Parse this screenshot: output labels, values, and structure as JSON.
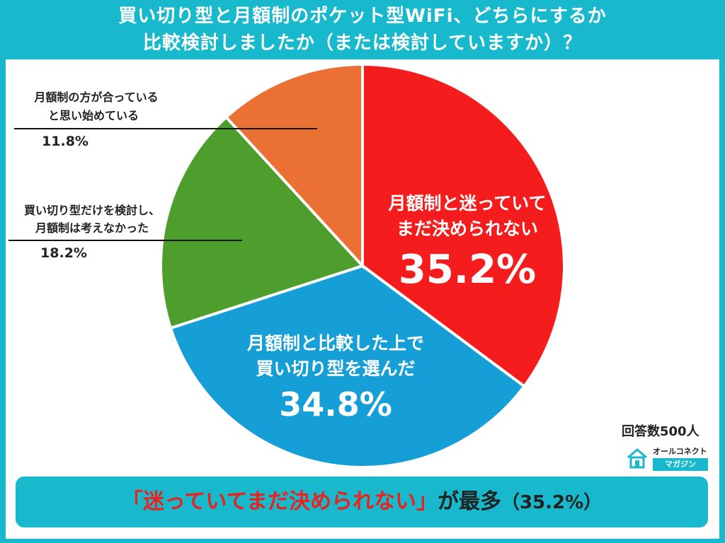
{
  "title": {
    "line1": "買い切り型と月額制のポケット型WiFi、どちらにするか",
    "line2": "比較検討しましたか（または検討していますか）？"
  },
  "chart_data": {
    "type": "pie",
    "slices": [
      {
        "label_lines": [
          "月額制と迷っていて",
          "まだ決められない"
        ],
        "value": 35.2,
        "display": "35.2%",
        "color": "#f41c1c"
      },
      {
        "label_lines": [
          "月額制と比較した上で",
          "買い切り型を選んだ"
        ],
        "value": 34.8,
        "display": "34.8%",
        "color": "#169fd6"
      },
      {
        "label_lines": [
          "買い切り型だけを検討し、",
          "月額制は考えなかった"
        ],
        "value": 18.2,
        "display": "18.2%",
        "color": "#4e9e2d"
      },
      {
        "label_lines": [
          "月額制の方が合っている",
          "と思い始めている"
        ],
        "value": 11.8,
        "display": "11.8%",
        "color": "#ea7033"
      }
    ]
  },
  "respondents": "回答数500人",
  "logo": {
    "top": "オールコネクト",
    "bottom": "マガジン",
    "icon": "house-wifi-icon"
  },
  "banner": {
    "highlight": "「迷っていてまだ決められない」",
    "rest": "が最多",
    "pct": "（35.2%）"
  }
}
